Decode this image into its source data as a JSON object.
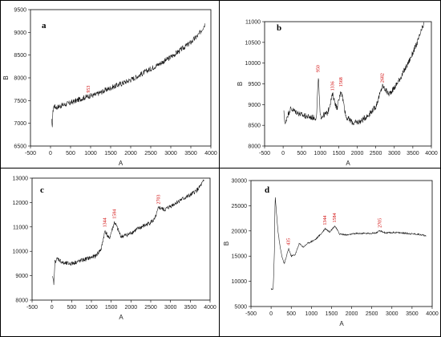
{
  "panels": [
    {
      "id": "a",
      "panel_label": "a",
      "xlabel": "A",
      "ylabel": "B",
      "xlim": [
        -500,
        4000
      ],
      "ylim": [
        6500,
        9500
      ],
      "xticks": [
        -500,
        0,
        500,
        1000,
        1500,
        2000,
        2500,
        3000,
        3500,
        4000
      ],
      "yticks": [
        6500,
        7000,
        7500,
        8000,
        8500,
        9000,
        9500
      ],
      "peaks": [
        {
          "x": 953,
          "label": "953"
        }
      ],
      "curve": [
        [
          30,
          7050
        ],
        [
          40,
          6880
        ],
        [
          60,
          7250
        ],
        [
          80,
          7380
        ],
        [
          150,
          7350
        ],
        [
          300,
          7400
        ],
        [
          500,
          7450
        ],
        [
          700,
          7520
        ],
        [
          953,
          7600
        ],
        [
          1100,
          7620
        ],
        [
          1300,
          7700
        ],
        [
          1500,
          7780
        ],
        [
          1700,
          7850
        ],
        [
          1900,
          7920
        ],
        [
          2100,
          8000
        ],
        [
          2300,
          8100
        ],
        [
          2500,
          8200
        ],
        [
          2700,
          8300
        ],
        [
          2900,
          8400
        ],
        [
          3100,
          8520
        ],
        [
          3300,
          8650
        ],
        [
          3500,
          8780
        ],
        [
          3700,
          8950
        ],
        [
          3850,
          9180
        ]
      ],
      "noise": 60
    },
    {
      "id": "b",
      "panel_label": "b",
      "xlabel": "A",
      "ylabel": "B",
      "xlim": [
        -500,
        4000
      ],
      "ylim": [
        8000,
        11000
      ],
      "xticks": [
        -500,
        0,
        500,
        1000,
        1500,
        2000,
        2500,
        3000,
        3500,
        4000
      ],
      "yticks": [
        8000,
        8500,
        9000,
        9500,
        10000,
        10500,
        11000
      ],
      "peaks": [
        {
          "x": 950,
          "label": "950"
        },
        {
          "x": 1336,
          "label": "1336"
        },
        {
          "x": 1568,
          "label": "1568"
        },
        {
          "x": 2682,
          "label": "2682"
        }
      ],
      "curve": [
        [
          20,
          8800
        ],
        [
          60,
          8500
        ],
        [
          100,
          8700
        ],
        [
          200,
          8900
        ],
        [
          300,
          8850
        ],
        [
          500,
          8750
        ],
        [
          700,
          8700
        ],
        [
          900,
          8680
        ],
        [
          950,
          9700
        ],
        [
          1000,
          8700
        ],
        [
          1200,
          8800
        ],
        [
          1336,
          9250
        ],
        [
          1450,
          8900
        ],
        [
          1568,
          9350
        ],
        [
          1700,
          8700
        ],
        [
          1900,
          8550
        ],
        [
          2100,
          8600
        ],
        [
          2300,
          8750
        ],
        [
          2500,
          8950
        ],
        [
          2682,
          9450
        ],
        [
          2850,
          9250
        ],
        [
          3000,
          9400
        ],
        [
          3200,
          9700
        ],
        [
          3400,
          10050
        ],
        [
          3600,
          10450
        ],
        [
          3800,
          10950
        ]
      ],
      "noise": 70
    },
    {
      "id": "c",
      "panel_label": "c",
      "xlabel": "A",
      "ylabel": "",
      "xlim": [
        -500,
        4000
      ],
      "ylim": [
        8000,
        13000
      ],
      "xticks": [
        -500,
        0,
        500,
        1000,
        1500,
        2000,
        2500,
        3000,
        3500,
        4000
      ],
      "yticks": [
        8000,
        9000,
        10000,
        11000,
        12000,
        13000
      ],
      "peaks": [
        {
          "x": 1344,
          "label": "1344"
        },
        {
          "x": 1584,
          "label": "1584"
        },
        {
          "x": 2703,
          "label": "2703"
        }
      ],
      "curve": [
        [
          20,
          8900
        ],
        [
          50,
          8700
        ],
        [
          80,
          9600
        ],
        [
          150,
          9700
        ],
        [
          300,
          9500
        ],
        [
          500,
          9500
        ],
        [
          700,
          9600
        ],
        [
          900,
          9700
        ],
        [
          1100,
          9800
        ],
        [
          1250,
          10100
        ],
        [
          1344,
          10850
        ],
        [
          1450,
          10500
        ],
        [
          1584,
          11200
        ],
        [
          1750,
          10600
        ],
        [
          1950,
          10700
        ],
        [
          2150,
          10900
        ],
        [
          2400,
          11100
        ],
        [
          2600,
          11300
        ],
        [
          2703,
          11800
        ],
        [
          2850,
          11700
        ],
        [
          3050,
          11900
        ],
        [
          3250,
          12100
        ],
        [
          3500,
          12300
        ],
        [
          3700,
          12550
        ],
        [
          3850,
          12900
        ]
      ],
      "noise": 90
    },
    {
      "id": "d",
      "panel_label": "d",
      "xlabel": "A",
      "ylabel": "B",
      "xlim": [
        -500,
        4000
      ],
      "ylim": [
        5000,
        30000
      ],
      "xticks": [
        -500,
        0,
        500,
        1000,
        1500,
        2000,
        2500,
        3000,
        3500,
        4000
      ],
      "yticks": [
        5000,
        10000,
        15000,
        20000,
        25000,
        30000
      ],
      "peaks": [
        {
          "x": 435,
          "label": "435"
        },
        {
          "x": 1344,
          "label": "1344"
        },
        {
          "x": 1584,
          "label": "1584"
        },
        {
          "x": 2705,
          "label": "2705"
        }
      ],
      "curve": [
        [
          0,
          8500
        ],
        [
          50,
          8400
        ],
        [
          80,
          15000
        ],
        [
          100,
          27000
        ],
        [
          130,
          24000
        ],
        [
          170,
          20000
        ],
        [
          220,
          17000
        ],
        [
          280,
          14500
        ],
        [
          330,
          13500
        ],
        [
          435,
          16500
        ],
        [
          500,
          15000
        ],
        [
          600,
          15300
        ],
        [
          700,
          17500
        ],
        [
          800,
          16800
        ],
        [
          900,
          17500
        ],
        [
          1100,
          18300
        ],
        [
          1250,
          19500
        ],
        [
          1344,
          20500
        ],
        [
          1450,
          19800
        ],
        [
          1584,
          21000
        ],
        [
          1700,
          19400
        ],
        [
          1900,
          19200
        ],
        [
          2100,
          19500
        ],
        [
          2400,
          19500
        ],
        [
          2600,
          19600
        ],
        [
          2705,
          20000
        ],
        [
          2850,
          19600
        ],
        [
          3100,
          19700
        ],
        [
          3400,
          19500
        ],
        [
          3700,
          19300
        ],
        [
          3850,
          19000
        ]
      ],
      "noise": 150
    }
  ]
}
